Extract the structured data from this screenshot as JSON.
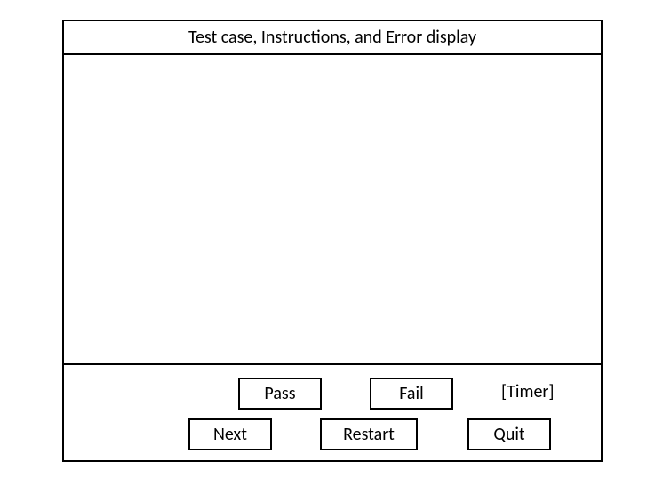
{
  "layout": {
    "type": "wireframe",
    "frame": {
      "border_color": "#000000",
      "border_width": 2,
      "background": "#ffffff"
    },
    "header_divider_width": 2,
    "footer_divider_width": 3,
    "font_family": "Calibri, Arial, sans-serif",
    "font_size": 20,
    "text_color": "#000000"
  },
  "header": {
    "title": "Test case, Instructions, and Error display"
  },
  "footer": {
    "timer_label": "[Timer]",
    "buttons": {
      "pass": {
        "label": "Pass",
        "row": 1,
        "border_color": "#000000"
      },
      "fail": {
        "label": "Fail",
        "row": 1,
        "border_color": "#000000"
      },
      "next": {
        "label": "Next",
        "row": 2,
        "border_color": "#000000"
      },
      "restart": {
        "label": "Restart",
        "row": 2,
        "border_color": "#000000"
      },
      "quit": {
        "label": "Quit",
        "row": 2,
        "border_color": "#000000"
      }
    }
  }
}
